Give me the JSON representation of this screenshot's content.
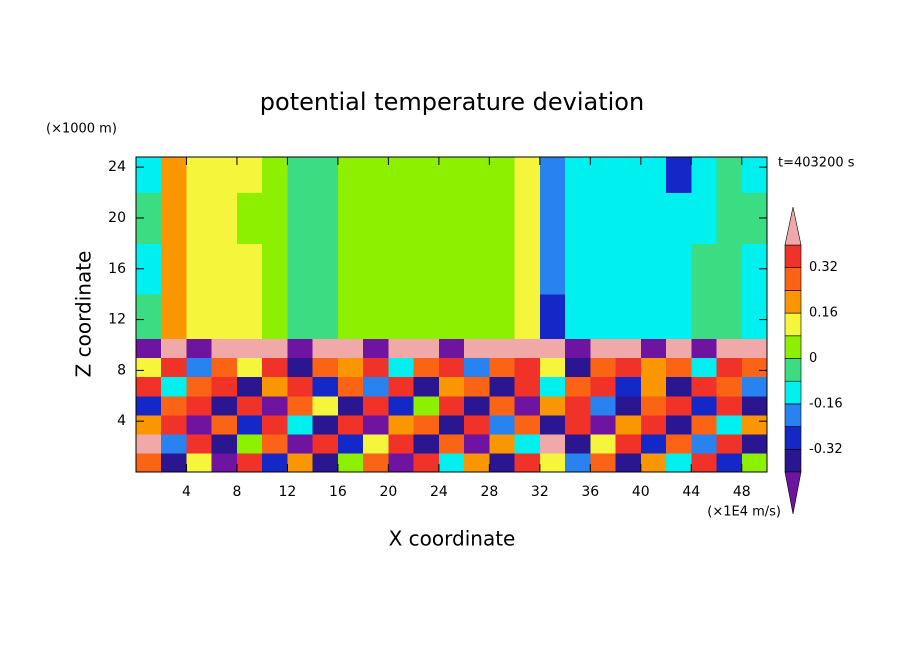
{
  "chart_data": {
    "type": "contour",
    "title": "potential temperature deviation",
    "x_label": "X coordinate",
    "y_label": "Z coordinate",
    "x_unit": "(×1E4 m/s)",
    "y_unit": "(×1000 m)",
    "annotation": "t=403200 s",
    "xlim": [
      0,
      50
    ],
    "ylim": [
      0,
      24.8
    ],
    "xticks": [
      4,
      8,
      12,
      16,
      20,
      24,
      28,
      32,
      36,
      40,
      44,
      48
    ],
    "yticks": [
      4,
      8,
      12,
      16,
      20,
      24
    ],
    "colorbar": {
      "levels": [
        -0.4,
        -0.32,
        -0.24,
        -0.16,
        -0.08,
        0,
        0.08,
        0.16,
        0.24,
        0.32,
        0.4
      ],
      "colors": [
        "#6e14a0",
        "#2a1690",
        "#1428c8",
        "#2882f0",
        "#00f0f0",
        "#3cdc82",
        "#8cf000",
        "#f5f53c",
        "#fa9600",
        "#fa6414",
        "#f03228",
        "#f0a8a8"
      ],
      "ticks": [
        -0.32,
        -0.16,
        0,
        0.16,
        0.32
      ]
    },
    "field": {
      "x_edges": [
        0,
        2,
        4,
        6,
        8,
        10,
        12,
        14,
        16,
        18,
        20,
        22,
        24,
        26,
        28,
        30,
        32,
        34,
        36,
        38,
        40,
        42,
        44,
        46,
        48,
        50
      ],
      "z_edges": [
        0,
        1.5,
        3,
        4.5,
        6,
        7.5,
        9,
        10.5,
        14,
        18,
        22,
        24.8
      ],
      "values": [
        [
          0.28,
          -0.36,
          0.12,
          -0.44,
          0.36,
          -0.28,
          0.2,
          -0.36,
          0.04,
          0.28,
          -0.44,
          0.36,
          -0.12,
          0.2,
          -0.36,
          0.36,
          0.12,
          -0.2,
          0.28,
          -0.36,
          0.2,
          -0.12,
          0.36,
          -0.28,
          0.04
        ],
        [
          0.44,
          -0.2,
          0.36,
          -0.36,
          0.04,
          0.28,
          -0.44,
          0.36,
          -0.28,
          0.12,
          0.36,
          -0.36,
          0.28,
          -0.44,
          0.2,
          -0.12,
          0.44,
          -0.36,
          0.12,
          0.36,
          -0.28,
          0.28,
          -0.2,
          0.36,
          -0.36
        ],
        [
          0.2,
          0.36,
          -0.44,
          0.28,
          -0.28,
          0.36,
          -0.12,
          -0.36,
          0.36,
          -0.44,
          0.2,
          0.28,
          -0.36,
          0.36,
          -0.2,
          0.28,
          -0.36,
          0.36,
          -0.44,
          0.2,
          0.36,
          -0.36,
          0.28,
          -0.12,
          0.2
        ],
        [
          -0.28,
          0.28,
          0.36,
          -0.36,
          0.36,
          -0.44,
          0.28,
          0.12,
          -0.36,
          0.36,
          -0.28,
          0.04,
          0.36,
          -0.36,
          0.28,
          -0.44,
          0.2,
          0.36,
          -0.2,
          -0.36,
          0.28,
          0.36,
          -0.28,
          0.36,
          -0.36
        ],
        [
          0.36,
          -0.12,
          0.28,
          0.36,
          -0.36,
          0.2,
          0.36,
          -0.28,
          0.28,
          -0.2,
          0.36,
          -0.36,
          0.2,
          0.28,
          -0.36,
          0.36,
          -0.12,
          0.28,
          0.36,
          -0.28,
          0.2,
          -0.36,
          0.36,
          0.28,
          -0.2
        ],
        [
          0.12,
          0.36,
          -0.2,
          0.28,
          0.12,
          0.36,
          -0.36,
          0.28,
          0.2,
          0.36,
          -0.12,
          0.28,
          0.36,
          -0.2,
          0.28,
          0.36,
          0.12,
          -0.36,
          0.28,
          0.36,
          0.2,
          0.28,
          -0.12,
          0.36,
          0.28
        ],
        [
          -0.44,
          0.44,
          -0.44,
          0.44,
          0.44,
          0.44,
          -0.44,
          0.44,
          0.44,
          -0.44,
          0.44,
          0.44,
          -0.44,
          0.44,
          0.44,
          0.44,
          0.44,
          -0.44,
          0.44,
          0.44,
          -0.44,
          0.44,
          -0.44,
          0.44,
          0.44
        ],
        [
          -0.04,
          0.2,
          0.12,
          0.12,
          0.12,
          0.04,
          -0.04,
          -0.04,
          0.04,
          0.04,
          0.04,
          0.04,
          0.04,
          0.04,
          0.04,
          0.12,
          -0.28,
          -0.12,
          -0.12,
          -0.12,
          -0.12,
          -0.12,
          -0.04,
          -0.04,
          -0.12
        ],
        [
          -0.12,
          0.2,
          0.12,
          0.12,
          0.12,
          0.04,
          -0.04,
          -0.04,
          0.04,
          0.04,
          0.04,
          0.04,
          0.04,
          0.04,
          0.04,
          0.12,
          -0.2,
          -0.12,
          -0.12,
          -0.12,
          -0.12,
          -0.12,
          -0.04,
          -0.04,
          -0.12
        ],
        [
          -0.04,
          0.2,
          0.12,
          0.12,
          0.04,
          0.04,
          -0.04,
          -0.04,
          0.04,
          0.04,
          0.04,
          0.04,
          0.04,
          0.04,
          0.04,
          0.12,
          -0.2,
          -0.12,
          -0.12,
          -0.12,
          -0.12,
          -0.12,
          -0.12,
          -0.04,
          -0.04
        ],
        [
          -0.12,
          0.2,
          0.12,
          0.12,
          0.12,
          0.04,
          -0.04,
          -0.04,
          0.04,
          0.04,
          0.04,
          0.04,
          0.04,
          0.04,
          0.04,
          0.12,
          -0.2,
          -0.12,
          -0.12,
          -0.12,
          -0.12,
          -0.28,
          -0.12,
          -0.04,
          -0.12
        ]
      ]
    }
  }
}
